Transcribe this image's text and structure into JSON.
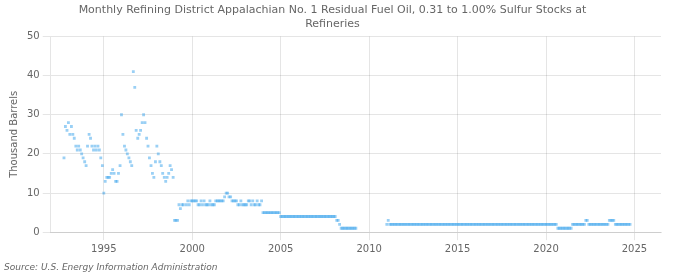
{
  "chart_data": {
    "type": "scatter",
    "title": "Monthly Refining District Appalachian No. 1 Residual Fuel Oil, 0.31 to 1.00% Sulfur Stocks at\nRefineries",
    "ylabel": "Thousand Barrels",
    "source": "Source: U.S. Energy Information Administration",
    "xlim": [
      1992.0,
      2026.5
    ],
    "ylim": [
      0,
      50
    ],
    "xticks": [
      1995,
      2000,
      2005,
      2010,
      2015,
      2020,
      2025
    ],
    "yticks": [
      0,
      10,
      20,
      30,
      40,
      50
    ],
    "grid": true,
    "marker": "square",
    "x": [
      1992.75,
      1992.83,
      1992.92,
      1993.0,
      1993.08,
      1993.17,
      1993.25,
      1993.33,
      1993.42,
      1993.5,
      1993.58,
      1993.67,
      1993.75,
      1993.83,
      1993.92,
      1994.0,
      1994.08,
      1994.17,
      1994.25,
      1994.33,
      1994.42,
      1994.5,
      1994.58,
      1994.67,
      1994.75,
      1994.83,
      1994.92,
      1995.0,
      1995.08,
      1995.17,
      1995.25,
      1995.33,
      1995.42,
      1995.5,
      1995.58,
      1995.67,
      1995.75,
      1995.83,
      1995.92,
      1996.0,
      1996.08,
      1996.17,
      1996.25,
      1996.33,
      1996.42,
      1996.5,
      1996.58,
      1996.67,
      1996.75,
      1996.83,
      1996.92,
      1997.0,
      1997.08,
      1997.17,
      1997.25,
      1997.33,
      1997.42,
      1997.5,
      1997.58,
      1997.67,
      1997.75,
      1997.83,
      1997.92,
      1998.0,
      1998.08,
      1998.17,
      1998.25,
      1998.33,
      1998.42,
      1998.5,
      1998.58,
      1998.67,
      1998.75,
      1998.83,
      1998.92,
      1999.0,
      1999.08,
      1999.17,
      1999.25,
      1999.33,
      1999.42,
      1999.5,
      1999.67,
      1999.75,
      1999.83,
      1999.92,
      2000.0,
      2000.08,
      2000.17,
      2000.25,
      2000.33,
      2000.42,
      2000.5,
      2000.58,
      2000.67,
      2000.75,
      2000.83,
      2000.92,
      2001.0,
      2001.08,
      2001.17,
      2001.25,
      2001.33,
      2001.42,
      2001.5,
      2001.58,
      2001.67,
      2001.75,
      2001.83,
      2001.92,
      2002.0,
      2002.08,
      2002.17,
      2002.25,
      2002.33,
      2002.42,
      2002.5,
      2002.58,
      2002.67,
      2002.75,
      2002.83,
      2002.92,
      2003.0,
      2003.08,
      2003.17,
      2003.25,
      2003.33,
      2003.42,
      2003.5,
      2003.58,
      2003.67,
      2003.75,
      2003.83,
      2003.92,
      2004.0,
      2004.08,
      2004.17,
      2004.25,
      2004.33,
      2004.42,
      2004.5,
      2004.58,
      2004.67,
      2004.75,
      2004.83,
      2004.92,
      2005.0,
      2005.08,
      2005.17,
      2005.25,
      2005.33,
      2005.42,
      2005.5,
      2005.58,
      2005.67,
      2005.75,
      2005.83,
      2005.92,
      2006.0,
      2006.08,
      2006.17,
      2006.25,
      2006.33,
      2006.42,
      2006.5,
      2006.58,
      2006.67,
      2006.75,
      2006.83,
      2006.92,
      2007.0,
      2007.08,
      2007.17,
      2007.25,
      2007.33,
      2007.42,
      2007.5,
      2007.58,
      2007.67,
      2007.75,
      2007.83,
      2007.92,
      2008.0,
      2008.08,
      2008.17,
      2008.25,
      2008.33,
      2008.42,
      2008.5,
      2008.58,
      2008.67,
      2008.75,
      2008.83,
      2008.92,
      2009.0,
      2009.08,
      2009.17,
      2009.25,
      2011.0,
      2011.08,
      2011.17,
      2011.25,
      2011.33,
      2011.42,
      2011.5,
      2011.58,
      2011.67,
      2011.75,
      2011.83,
      2011.92,
      2012.0,
      2012.08,
      2012.17,
      2012.25,
      2012.33,
      2012.42,
      2012.5,
      2012.58,
      2012.67,
      2012.75,
      2012.83,
      2012.92,
      2013.0,
      2013.08,
      2013.17,
      2013.25,
      2013.33,
      2013.42,
      2013.5,
      2013.58,
      2013.67,
      2013.75,
      2013.83,
      2013.92,
      2014.0,
      2014.08,
      2014.17,
      2014.25,
      2014.33,
      2014.42,
      2014.5,
      2014.58,
      2014.67,
      2014.75,
      2014.83,
      2014.92,
      2015.0,
      2015.08,
      2015.17,
      2015.25,
      2015.33,
      2015.42,
      2015.5,
      2015.58,
      2015.67,
      2015.75,
      2015.83,
      2015.92,
      2016.0,
      2016.08,
      2016.17,
      2016.25,
      2016.33,
      2016.42,
      2016.5,
      2016.58,
      2016.67,
      2016.75,
      2016.83,
      2016.92,
      2017.0,
      2017.08,
      2017.17,
      2017.25,
      2017.33,
      2017.42,
      2017.5,
      2017.58,
      2017.67,
      2017.75,
      2017.83,
      2017.92,
      2018.0,
      2018.08,
      2018.17,
      2018.25,
      2018.33,
      2018.42,
      2018.5,
      2018.58,
      2018.67,
      2018.75,
      2018.83,
      2018.92,
      2019.0,
      2019.08,
      2019.17,
      2019.25,
      2019.33,
      2019.42,
      2019.5,
      2019.58,
      2019.67,
      2019.75,
      2019.83,
      2019.92,
      2020.0,
      2020.08,
      2020.17,
      2020.25,
      2020.33,
      2020.42,
      2020.5,
      2020.58,
      2020.67,
      2020.75,
      2020.83,
      2020.92,
      2021.0,
      2021.08,
      2021.17,
      2021.25,
      2021.33,
      2021.42,
      2021.5,
      2021.58,
      2021.67,
      2021.75,
      2021.83,
      2021.92,
      2022.0,
      2022.08,
      2022.17,
      2022.25,
      2022.33,
      2022.42,
      2022.5,
      2022.58,
      2022.67,
      2022.75,
      2022.83,
      2022.92,
      2023.0,
      2023.08,
      2023.17,
      2023.25,
      2023.33,
      2023.42,
      2023.5,
      2023.58,
      2023.67,
      2023.75,
      2023.83,
      2023.92,
      2024.0,
      2024.08,
      2024.17,
      2024.25,
      2024.33,
      2024.42,
      2024.5,
      2024.58,
      2024.67,
      2024.75
    ],
    "values": [
      19,
      27,
      26,
      28,
      25,
      27,
      25,
      24,
      22,
      21,
      22,
      21,
      20,
      19,
      18,
      17,
      22,
      25,
      24,
      22,
      21,
      22,
      21,
      22,
      21,
      19,
      17,
      10,
      13,
      14,
      14,
      14,
      15,
      16,
      15,
      13,
      13,
      15,
      17,
      30,
      25,
      22,
      21,
      20,
      19,
      18,
      17,
      41,
      37,
      26,
      24,
      25,
      26,
      28,
      30,
      28,
      24,
      22,
      19,
      17,
      15,
      14,
      18,
      22,
      20,
      18,
      17,
      15,
      14,
      13,
      14,
      15,
      17,
      16,
      14,
      3,
      3,
      3,
      7,
      6,
      7,
      7,
      7,
      8,
      7,
      8,
      8,
      8,
      8,
      8,
      7,
      7,
      8,
      7,
      8,
      7,
      7,
      7,
      8,
      7,
      7,
      7,
      8,
      8,
      8,
      8,
      8,
      8,
      9,
      10,
      10,
      9,
      9,
      8,
      8,
      8,
      8,
      7,
      7,
      8,
      7,
      7,
      7,
      7,
      8,
      8,
      7,
      8,
      7,
      7,
      8,
      7,
      7,
      8,
      5,
      5,
      5,
      5,
      5,
      5,
      5,
      5,
      5,
      5,
      5,
      5,
      4,
      4,
      4,
      4,
      4,
      4,
      4,
      4,
      4,
      4,
      4,
      4,
      4,
      4,
      4,
      4,
      4,
      4,
      4,
      4,
      4,
      4,
      4,
      4,
      4,
      4,
      4,
      4,
      4,
      4,
      4,
      4,
      4,
      4,
      4,
      4,
      4,
      4,
      3,
      3,
      2,
      1,
      1,
      1,
      1,
      1,
      1,
      1,
      1,
      1,
      1,
      1,
      2,
      3,
      2,
      2,
      2,
      2,
      2,
      2,
      2,
      2,
      2,
      2,
      2,
      2,
      2,
      2,
      2,
      2,
      2,
      2,
      2,
      2,
      2,
      2,
      2,
      2,
      2,
      2,
      2,
      2,
      2,
      2,
      2,
      2,
      2,
      2,
      2,
      2,
      2,
      2,
      2,
      2,
      2,
      2,
      2,
      2,
      2,
      2,
      2,
      2,
      2,
      2,
      2,
      2,
      2,
      2,
      2,
      2,
      2,
      2,
      2,
      2,
      2,
      2,
      2,
      2,
      2,
      2,
      2,
      2,
      2,
      2,
      2,
      2,
      2,
      2,
      2,
      2,
      2,
      2,
      2,
      2,
      2,
      2,
      2,
      2,
      2,
      2,
      2,
      2,
      2,
      2,
      2,
      2,
      2,
      2,
      2,
      2,
      2,
      2,
      2,
      2,
      2,
      2,
      2,
      2,
      2,
      2,
      2,
      2,
      2,
      2,
      2,
      2,
      2,
      2,
      1,
      1,
      1,
      1,
      1,
      1,
      1,
      1,
      1,
      1,
      2,
      2,
      2,
      2,
      2,
      2,
      2,
      2,
      2,
      3,
      3,
      2,
      2,
      2,
      2,
      2,
      2,
      2,
      2,
      2,
      2,
      2,
      2,
      2,
      2,
      3,
      3,
      3,
      3,
      2,
      2,
      2,
      2,
      2,
      2,
      2,
      2,
      2,
      2,
      2
    ]
  }
}
